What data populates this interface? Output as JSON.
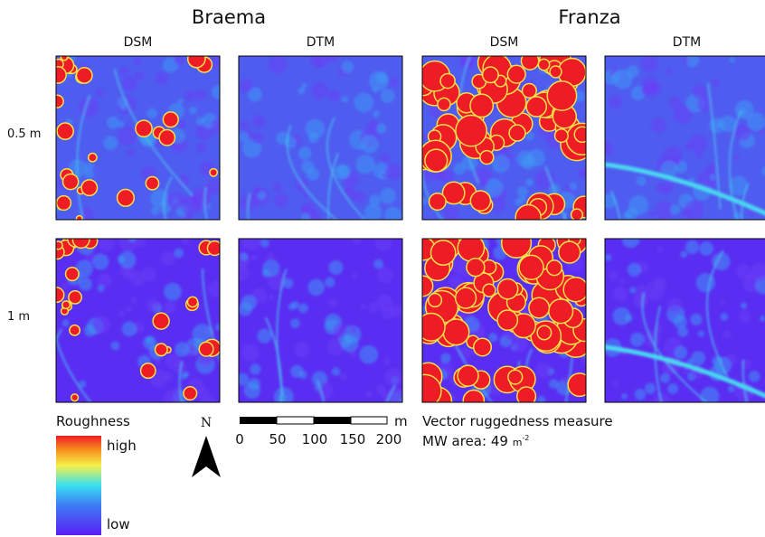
{
  "sites": [
    {
      "name": "Braema",
      "columns": [
        "DSM",
        "DTM"
      ]
    },
    {
      "name": "Franza",
      "columns": [
        "DSM",
        "DTM"
      ]
    }
  ],
  "rows": [
    "0.5 m",
    "1 m"
  ],
  "legend": {
    "title": "Roughness",
    "high": "high",
    "low": "low"
  },
  "north": "N",
  "scale_bar": {
    "ticks": [
      0,
      50,
      100,
      150,
      200
    ],
    "unit": "m"
  },
  "caption": {
    "measure": "Vector ruggedness measure",
    "area_label": "MW area:",
    "area_value": 49,
    "area_unit": "m",
    "area_exponent": "-2"
  }
}
